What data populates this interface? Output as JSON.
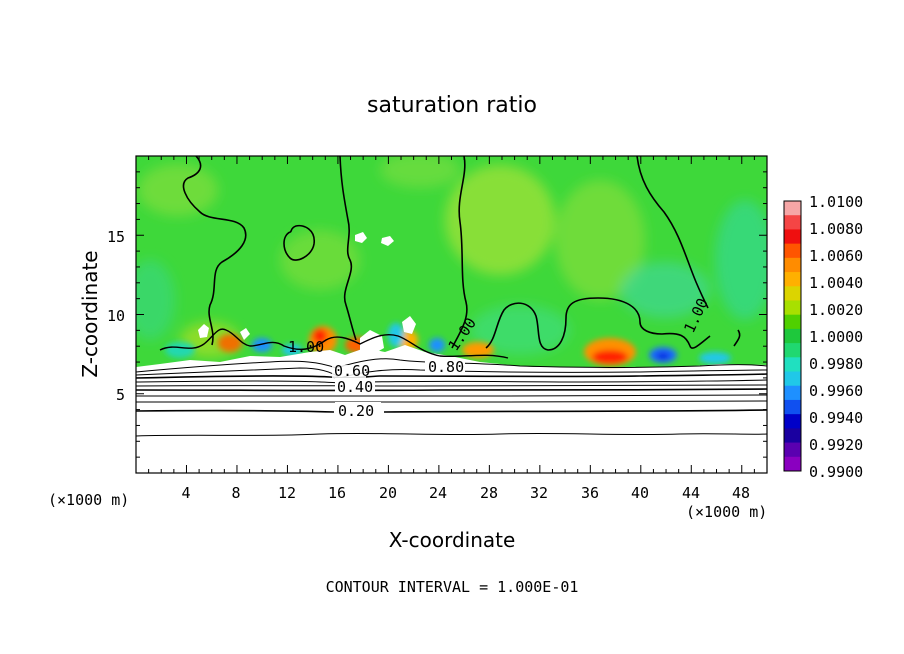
{
  "chart_data": {
    "type": "heatmap",
    "title": "saturation ratio",
    "xlabel": "X-coordinate",
    "ylabel": "Z-coordinate",
    "x_unit": "(×1000 m)",
    "y_unit": "(×1000 m)",
    "footer": "CONTOUR INTERVAL = 1.000E-01",
    "xlim": [
      0,
      50
    ],
    "ylim": [
      0,
      20
    ],
    "x_ticks": [
      "4",
      "8",
      "12",
      "16",
      "20",
      "24",
      "28",
      "32",
      "36",
      "40",
      "44",
      "48"
    ],
    "y_ticks": [
      "5",
      "10",
      "15"
    ],
    "colorbar": {
      "min": 0.99,
      "max": 1.01,
      "labels": [
        "1.0100",
        "1.0080",
        "1.0060",
        "1.0040",
        "1.0020",
        "1.0000",
        "0.9980",
        "0.9960",
        "0.9940",
        "0.9920",
        "0.9900"
      ],
      "colors": [
        "#f6a6a6",
        "#f54545",
        "#ef0f0f",
        "#ff5500",
        "#ff8c00",
        "#ffb000",
        "#dcd400",
        "#a8e000",
        "#50d000",
        "#1ec83c",
        "#20d870",
        "#20e0c0",
        "#20c8e8",
        "#1e90ff",
        "#1050f0",
        "#0000c8",
        "#1a00a0",
        "#5a00b0",
        "#8a00c0"
      ]
    },
    "contour_labels": [
      "1.00",
      "1.00",
      "1.00",
      "0.80",
      "0.60",
      "0.40",
      "0.20"
    ],
    "contour_interval": 0.1
  }
}
